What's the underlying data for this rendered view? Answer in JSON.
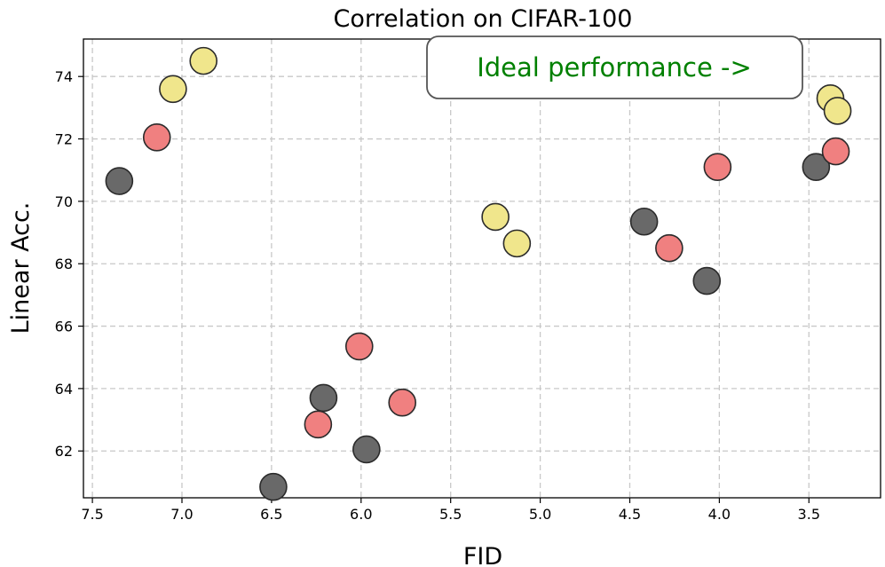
{
  "chart_data": {
    "type": "scatter",
    "title": "Correlation on CIFAR-100",
    "xlabel": "FID",
    "ylabel": "Linear Acc.",
    "x_inverted": true,
    "xlim": [
      7.55,
      3.1
    ],
    "ylim": [
      60.5,
      75.2
    ],
    "x_ticks": [
      7.5,
      7.0,
      6.5,
      6.0,
      5.5,
      5.0,
      4.5,
      4.0,
      3.5
    ],
    "x_tick_labels": [
      "7.5",
      "7.0",
      "6.5",
      "6.0",
      "5.5",
      "5.0",
      "4.5",
      "4.0",
      "3.5"
    ],
    "y_ticks": [
      62,
      64,
      66,
      68,
      70,
      72,
      74
    ],
    "y_tick_labels": [
      "62",
      "64",
      "66",
      "68",
      "70",
      "72",
      "74"
    ],
    "grid": true,
    "annotation": "Ideal performance ->",
    "annotation_color": "#008000",
    "series": [
      {
        "color": "#696969",
        "points": [
          {
            "x": 7.35,
            "y": 70.65
          },
          {
            "x": 6.49,
            "y": 60.85
          },
          {
            "x": 6.21,
            "y": 63.7
          },
          {
            "x": 5.97,
            "y": 62.05
          },
          {
            "x": 4.42,
            "y": 69.35
          },
          {
            "x": 4.07,
            "y": 67.45
          },
          {
            "x": 3.46,
            "y": 71.1
          }
        ]
      },
      {
        "color": "#f08080",
        "points": [
          {
            "x": 7.14,
            "y": 72.05
          },
          {
            "x": 6.24,
            "y": 62.85
          },
          {
            "x": 6.01,
            "y": 65.35
          },
          {
            "x": 5.77,
            "y": 63.55
          },
          {
            "x": 4.28,
            "y": 68.5
          },
          {
            "x": 4.01,
            "y": 71.1
          },
          {
            "x": 3.35,
            "y": 71.6
          }
        ]
      },
      {
        "color": "#f0e68c",
        "points": [
          {
            "x": 7.05,
            "y": 73.6
          },
          {
            "x": 6.88,
            "y": 74.5
          },
          {
            "x": 5.25,
            "y": 69.5
          },
          {
            "x": 5.13,
            "y": 68.65
          },
          {
            "x": 3.38,
            "y": 73.3
          },
          {
            "x": 3.34,
            "y": 72.9
          }
        ]
      }
    ]
  }
}
